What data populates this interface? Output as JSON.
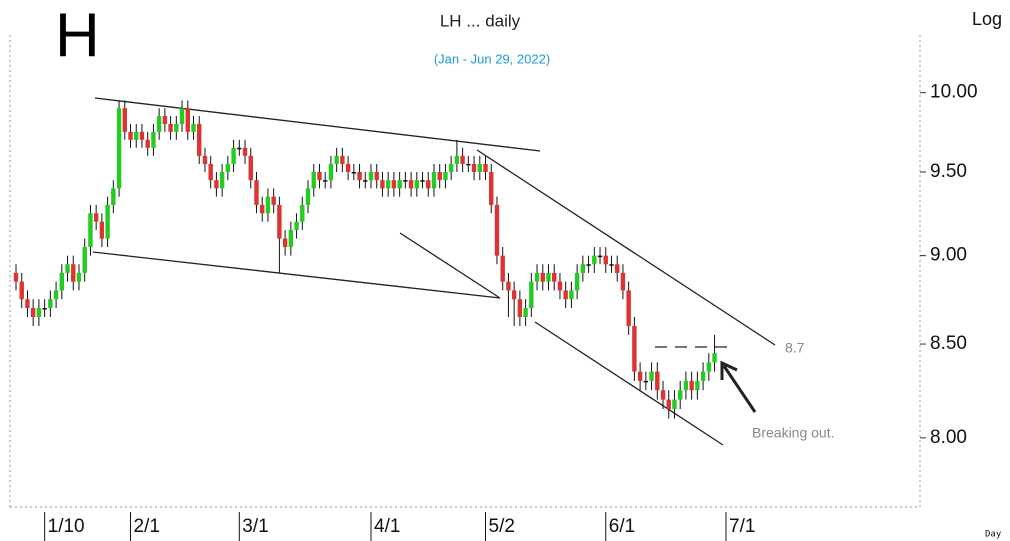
{
  "chart_data": {
    "type": "candlestick",
    "label": "H",
    "title": "LH ... daily",
    "subtitle": "(Jan - Jun 29, 2022)",
    "scale_label": "Log",
    "period_label": "Day",
    "annotations": [
      "8.7",
      "Breaking out."
    ],
    "log_scale": true,
    "up_color": "#22cc22",
    "down_color": "#dd3333",
    "ylim": [
      7.65,
      10.38
    ],
    "yticks": [
      {
        "value": 8,
        "label": "8.00"
      },
      {
        "value": 8.5,
        "label": "8.50"
      },
      {
        "value": 9,
        "label": "9.00"
      },
      {
        "value": 9.5,
        "label": "9.50"
      },
      {
        "value": 10,
        "label": "10.00"
      }
    ],
    "categories": [
      null,
      null,
      null,
      null,
      null,
      "1/10",
      null,
      null,
      null,
      null,
      null,
      null,
      null,
      null,
      null,
      null,
      null,
      null,
      null,
      null,
      "2/1",
      null,
      null,
      null,
      null,
      null,
      null,
      null,
      null,
      null,
      null,
      null,
      null,
      null,
      null,
      null,
      null,
      null,
      null,
      "3/1",
      null,
      null,
      null,
      null,
      null,
      null,
      null,
      null,
      null,
      null,
      null,
      null,
      null,
      null,
      null,
      null,
      null,
      null,
      null,
      null,
      null,
      null,
      "4/1",
      null,
      null,
      null,
      null,
      null,
      null,
      null,
      null,
      null,
      null,
      null,
      null,
      null,
      null,
      null,
      null,
      null,
      null,
      null,
      "5/2",
      null,
      null,
      null,
      null,
      null,
      null,
      null,
      null,
      null,
      null,
      null,
      null,
      null,
      null,
      null,
      null,
      null,
      null,
      null,
      null,
      "6/1",
      null,
      null,
      null,
      null,
      null,
      null,
      null,
      null,
      null,
      null,
      null,
      null,
      null,
      null,
      null,
      null,
      null,
      null,
      null,
      null,
      "7/1"
    ],
    "open": [
      8.9,
      8.85,
      8.75,
      8.7,
      8.65,
      8.7,
      8.7,
      8.75,
      8.8,
      8.9,
      8.95,
      8.85,
      8.9,
      9.05,
      9.25,
      9.2,
      9.1,
      9.3,
      9.4,
      9.9,
      9.75,
      9.7,
      9.75,
      9.7,
      9.65,
      9.75,
      9.85,
      9.8,
      9.75,
      9.8,
      9.9,
      9.75,
      9.8,
      9.6,
      9.55,
      9.45,
      9.4,
      9.5,
      9.55,
      9.65,
      9.65,
      9.6,
      9.45,
      9.3,
      9.25,
      9.35,
      9.3,
      9.1,
      9.05,
      9.15,
      9.2,
      9.3,
      9.4,
      9.5,
      9.45,
      9.45,
      9.55,
      9.6,
      9.55,
      9.5,
      9.5,
      9.45,
      9.45,
      9.5,
      9.45,
      9.4,
      9.45,
      9.4,
      9.45,
      9.45,
      9.4,
      9.45,
      9.45,
      9.4,
      9.5,
      9.45,
      9.5,
      9.55,
      9.6,
      9.55,
      9.55,
      9.5,
      9.55,
      9.5,
      9.3,
      9.0,
      8.85,
      8.8,
      8.75,
      8.65,
      8.7,
      8.85,
      8.9,
      8.85,
      8.9,
      8.85,
      8.8,
      8.75,
      8.8,
      8.9,
      8.95,
      8.95,
      9.0,
      9.0,
      8.95,
      8.95,
      8.9,
      8.8,
      8.6,
      8.35,
      8.3,
      8.3,
      8.35,
      8.25,
      8.2,
      8.15,
      8.2,
      8.25,
      8.3,
      8.25,
      8.3,
      8.35,
      8.4,
      null,
      null
    ],
    "high": [
      8.95,
      8.9,
      8.8,
      8.75,
      8.75,
      8.75,
      8.8,
      8.85,
      8.95,
      9.0,
      9.0,
      8.95,
      9.1,
      9.3,
      9.3,
      9.25,
      9.35,
      9.45,
      9.95,
      9.95,
      9.8,
      9.8,
      9.8,
      9.75,
      9.8,
      9.9,
      9.9,
      9.85,
      9.85,
      9.95,
      9.95,
      9.85,
      9.85,
      9.65,
      9.6,
      9.5,
      9.55,
      9.6,
      9.7,
      9.7,
      9.7,
      9.65,
      9.5,
      9.35,
      9.4,
      9.4,
      9.35,
      9.15,
      9.2,
      9.25,
      9.35,
      9.45,
      9.55,
      9.55,
      9.5,
      9.6,
      9.65,
      9.65,
      9.6,
      9.55,
      9.55,
      9.5,
      9.55,
      9.55,
      9.5,
      9.5,
      9.5,
      9.5,
      9.5,
      9.5,
      9.5,
      9.5,
      9.5,
      9.55,
      9.55,
      9.55,
      9.6,
      9.7,
      9.65,
      9.6,
      9.6,
      9.6,
      9.6,
      9.55,
      9.35,
      9.05,
      8.9,
      8.85,
      8.8,
      8.75,
      8.9,
      8.95,
      8.95,
      8.95,
      8.95,
      8.9,
      8.85,
      8.85,
      8.95,
      9.0,
      9.0,
      9.05,
      9.05,
      9.05,
      9.0,
      9.0,
      8.95,
      8.85,
      8.65,
      8.4,
      8.35,
      8.4,
      8.4,
      8.3,
      8.25,
      8.25,
      8.3,
      8.35,
      8.35,
      8.35,
      8.4,
      8.45,
      8.55,
      null,
      null
    ],
    "low": [
      8.8,
      8.7,
      8.65,
      8.6,
      8.6,
      8.65,
      8.65,
      8.7,
      8.75,
      8.85,
      8.8,
      8.8,
      8.85,
      9.0,
      9.15,
      9.05,
      9.05,
      9.25,
      9.35,
      9.7,
      9.65,
      9.65,
      9.65,
      9.6,
      9.6,
      9.7,
      9.75,
      9.7,
      9.7,
      9.75,
      9.7,
      9.7,
      9.55,
      9.5,
      9.4,
      9.35,
      9.35,
      9.45,
      9.5,
      9.6,
      9.55,
      9.4,
      9.25,
      9.2,
      9.2,
      9.25,
      8.9,
      9.0,
      9.0,
      9.1,
      9.15,
      9.25,
      9.35,
      9.4,
      9.4,
      9.4,
      9.5,
      9.5,
      9.45,
      9.45,
      9.4,
      9.4,
      9.4,
      9.4,
      9.35,
      9.35,
      9.35,
      9.35,
      9.4,
      9.35,
      9.35,
      9.4,
      9.35,
      9.35,
      9.4,
      9.4,
      9.45,
      9.5,
      9.5,
      9.5,
      9.45,
      9.45,
      9.45,
      9.25,
      8.95,
      8.8,
      8.65,
      8.6,
      8.6,
      8.6,
      8.65,
      8.8,
      8.8,
      8.8,
      8.8,
      8.75,
      8.7,
      8.7,
      8.75,
      8.85,
      8.9,
      8.9,
      8.95,
      8.9,
      8.9,
      8.85,
      8.75,
      8.55,
      8.3,
      8.25,
      8.25,
      8.25,
      8.2,
      8.15,
      8.1,
      8.1,
      8.15,
      8.2,
      8.2,
      8.2,
      8.25,
      8.3,
      8.35,
      null,
      null
    ],
    "close": [
      8.85,
      8.75,
      8.7,
      8.65,
      8.7,
      8.7,
      8.75,
      8.8,
      8.9,
      8.95,
      8.85,
      8.9,
      9.05,
      9.25,
      9.2,
      9.1,
      9.3,
      9.4,
      9.9,
      9.75,
      9.7,
      9.75,
      9.7,
      9.65,
      9.75,
      9.85,
      9.8,
      9.75,
      9.8,
      9.9,
      9.75,
      9.8,
      9.6,
      9.55,
      9.45,
      9.4,
      9.5,
      9.55,
      9.65,
      9.65,
      9.6,
      9.45,
      9.3,
      9.25,
      9.35,
      9.3,
      9.1,
      9.05,
      9.15,
      9.2,
      9.3,
      9.4,
      9.5,
      9.45,
      9.45,
      9.55,
      9.6,
      9.55,
      9.5,
      9.5,
      9.45,
      9.45,
      9.5,
      9.45,
      9.4,
      9.45,
      9.4,
      9.45,
      9.45,
      9.4,
      9.45,
      9.45,
      9.4,
      9.5,
      9.45,
      9.5,
      9.55,
      9.6,
      9.55,
      9.55,
      9.5,
      9.55,
      9.5,
      9.3,
      9.0,
      8.85,
      8.8,
      8.75,
      8.65,
      8.7,
      8.85,
      8.9,
      8.85,
      8.9,
      8.85,
      8.8,
      8.75,
      8.8,
      8.9,
      8.95,
      8.95,
      9.0,
      9.0,
      8.95,
      8.95,
      8.9,
      8.8,
      8.6,
      8.35,
      8.3,
      8.3,
      8.35,
      8.25,
      8.2,
      8.15,
      8.2,
      8.25,
      8.3,
      8.25,
      8.3,
      8.35,
      8.4,
      8.45,
      null,
      null
    ]
  }
}
